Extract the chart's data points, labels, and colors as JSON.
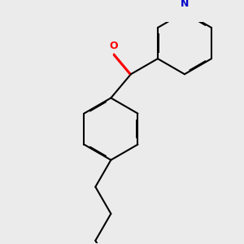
{
  "background_color": "#ebebeb",
  "bond_color": "#000000",
  "nitrogen_color": "#0000cc",
  "oxygen_color": "#ff0000",
  "line_width": 1.5,
  "dbo": 0.012,
  "figsize": [
    3.0,
    3.0
  ],
  "dpi": 100,
  "xlim": [
    0,
    3.0
  ],
  "ylim": [
    0,
    3.0
  ]
}
